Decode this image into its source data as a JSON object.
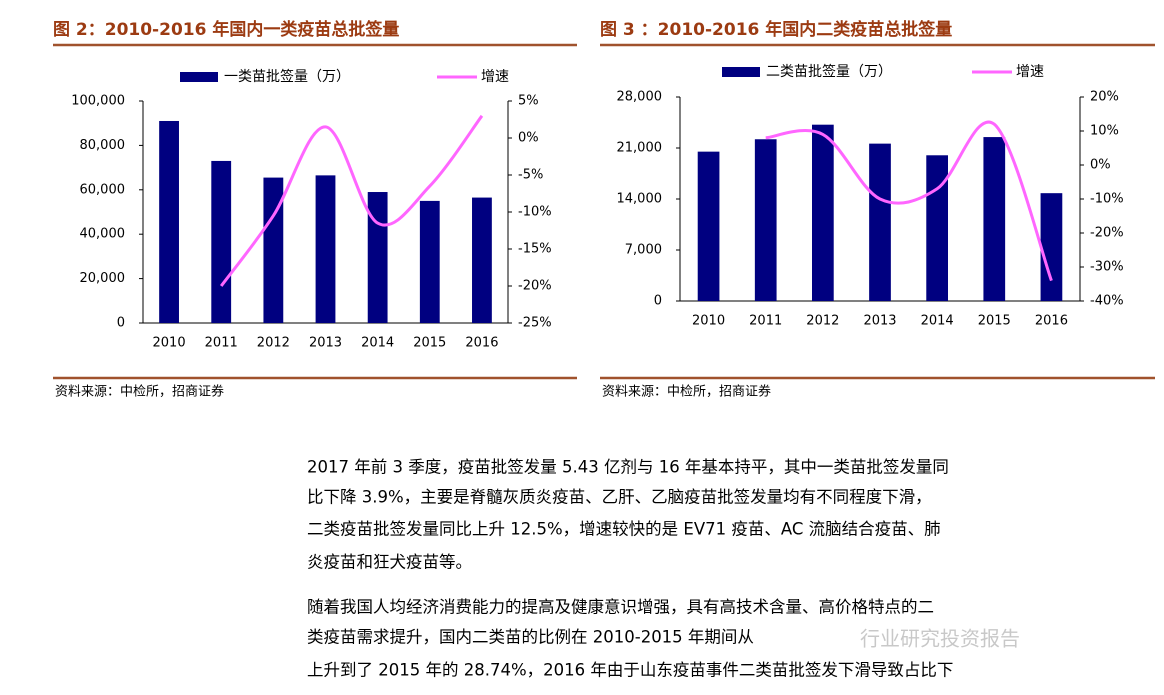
{
  "chart_data": [
    {
      "type": "bar",
      "title": "图 2：2010-2016 年国内一类疫苗总批签量",
      "categories": [
        "2010",
        "2011",
        "2012",
        "2013",
        "2014",
        "2015",
        "2016"
      ],
      "series": [
        {
          "name": "一类苗批签量（万）",
          "color": "#000080",
          "type": "bar",
          "values": [
            91000,
            73000,
            65500,
            66500,
            59000,
            55000,
            56500
          ]
        },
        {
          "name": "增速",
          "color": "#ff66ff",
          "type": "line",
          "axis": "y2",
          "values": [
            null,
            -20,
            -10.5,
            1.5,
            -11.5,
            -6.5,
            3
          ]
        }
      ],
      "ylim": [
        0,
        100000
      ],
      "yticks": [
        0,
        {
          "value": 20000,
          "label": "20,000"
        },
        {
          "value": 40000,
          "label": "40,000"
        },
        {
          "value": 60000,
          "label": "60,000"
        },
        {
          "value": 80000,
          "label": "80,000"
        },
        {
          "value": 100000,
          "label": "100,000"
        }
      ],
      "y2lim": [
        -25,
        5
      ],
      "y2ticks": [
        {
          "value": -25,
          "label": "-25%"
        },
        {
          "value": -20,
          "label": "-20%"
        },
        {
          "value": -15,
          "label": "-15%"
        },
        {
          "value": -10,
          "label": "-10%"
        },
        {
          "value": -5,
          "label": "-5%"
        },
        {
          "value": 0,
          "label": "0%"
        },
        {
          "value": 5,
          "label": "5%"
        }
      ],
      "source": "资料来源：中检所，招商证券"
    },
    {
      "type": "bar",
      "title": "图 3 ：2010-2016 年国内二类疫苗总批签量",
      "categories": [
        "2010",
        "2011",
        "2012",
        "2013",
        "2014",
        "2015",
        "2016"
      ],
      "series": [
        {
          "name": "二类苗批签量（万）",
          "color": "#000080",
          "type": "bar",
          "values": [
            20500,
            22200,
            24200,
            21600,
            20000,
            22500,
            14800
          ]
        },
        {
          "name": "增速",
          "color": "#ff66ff",
          "type": "line",
          "axis": "y2",
          "values": [
            null,
            8,
            9,
            -10,
            -7,
            12,
            -34
          ]
        }
      ],
      "ylim": [
        0,
        28000
      ],
      "yticks": [
        0,
        {
          "value": 7000,
          "label": "7,000"
        },
        {
          "value": 14000,
          "label": "14,000"
        },
        {
          "value": 21000,
          "label": "21,000"
        },
        {
          "value": 28000,
          "label": "28,000"
        }
      ],
      "y2lim": [
        -40,
        20
      ],
      "y2ticks": [
        {
          "value": -40,
          "label": "-40%"
        },
        {
          "value": -30,
          "label": "-30%"
        },
        {
          "value": -20,
          "label": "-20%"
        },
        {
          "value": -10,
          "label": "-10%"
        },
        {
          "value": 0,
          "label": "0%"
        },
        {
          "value": 10,
          "label": "10%"
        },
        {
          "value": 20,
          "label": "20%"
        }
      ],
      "source": "资料来源：中检所，招商证券"
    }
  ],
  "paragraphs": [
    [
      "2017 年前 3 季度，疫苗批签发量 5.43 亿剂与 16 年基本持平，其中一类苗批签发量同",
      "比下降 3.9%，主要是脊髓灰质炎疫苗、乙肝、乙脑疫苗批签发量均有不同程度下滑，",
      "二类疫苗批签发量同比上升 12.5%，增速较快的是 EV71 疫苗、AC 流脑结合疫苗、肺",
      "炎疫苗和狂犬疫苗等。"
    ],
    [
      "随着我国人均经济消费能力的提高及健康意识增强，具有高技术含量、高价格特点的二",
      "类疫苗需求提升，国内二类苗的比例在 2010-2015 年期间从",
      "上升到了 2015 年的 28.74%，2016 年由于山东疫苗事件二类苗批签发下滑导致占比下"
    ]
  ],
  "watermark": "行业研究投资报告"
}
